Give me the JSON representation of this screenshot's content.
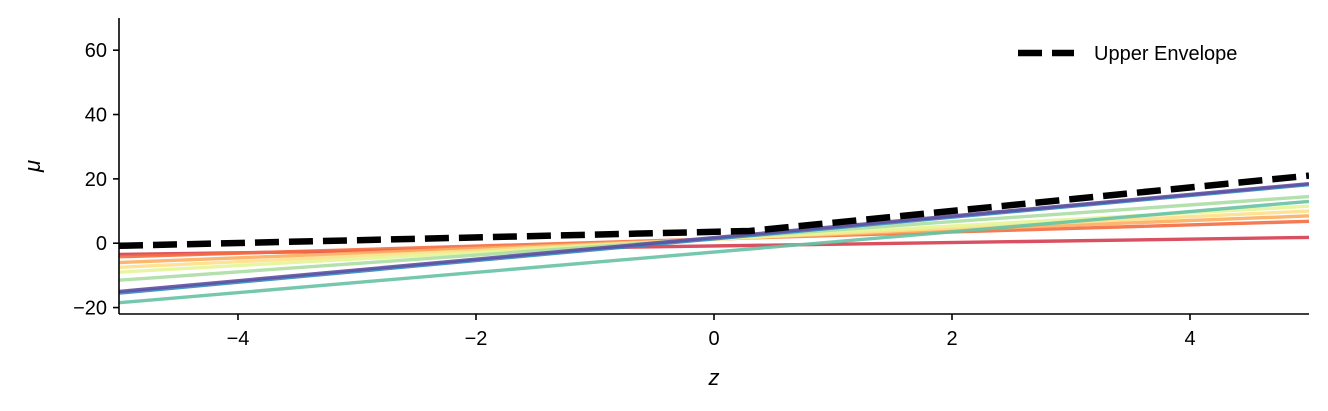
{
  "chart_data": {
    "type": "line",
    "title": "",
    "xlabel": "z",
    "ylabel": "μ",
    "xlim": [
      -5,
      5
    ],
    "ylim": [
      -22,
      70
    ],
    "xticks": [
      -4,
      -2,
      0,
      2,
      4
    ],
    "xtick_labels": [
      "−4",
      "−2",
      "0",
      "2",
      "4"
    ],
    "yticks": [
      -20,
      0,
      20,
      40,
      60
    ],
    "ytick_labels": [
      "−20",
      "0",
      "20",
      "40",
      "60"
    ],
    "grid": false,
    "legend": {
      "placement": "top-right",
      "entries": [
        {
          "label": "Upper Envelope",
          "style": "dashed",
          "color": "#000000"
        }
      ]
    },
    "series": [
      {
        "color": "#d53e4f",
        "x": [
          -5,
          5
        ],
        "y": [
          -3.5,
          1.8
        ]
      },
      {
        "color": "#f46d43",
        "x": [
          -5,
          5
        ],
        "y": [
          -4.2,
          6.8
        ]
      },
      {
        "color": "#fdae61",
        "x": [
          -5,
          5
        ],
        "y": [
          -6.0,
          8.5
        ]
      },
      {
        "color": "#fee08b",
        "x": [
          -5,
          5
        ],
        "y": [
          -7.5,
          10.0
        ]
      },
      {
        "color": "#e6f598",
        "x": [
          -5,
          5
        ],
        "y": [
          -9.0,
          11.5
        ]
      },
      {
        "color": "#abdda4",
        "x": [
          -5,
          5
        ],
        "y": [
          -11.5,
          14.5
        ]
      },
      {
        "color": "#66c2a5",
        "x": [
          -5,
          5
        ],
        "y": [
          -18.5,
          13.0
        ]
      },
      {
        "color": "#3288bd",
        "x": [
          -5,
          5
        ],
        "y": [
          -15.5,
          18.2
        ]
      },
      {
        "color": "#5e4fa2",
        "x": [
          -5,
          5
        ],
        "y": [
          -15.0,
          18.5
        ]
      }
    ],
    "envelope": {
      "name": "Upper Envelope",
      "color": "#000000",
      "x": [
        -5,
        0.3,
        5
      ],
      "y": [
        -0.8,
        3.8,
        21.0
      ]
    }
  }
}
